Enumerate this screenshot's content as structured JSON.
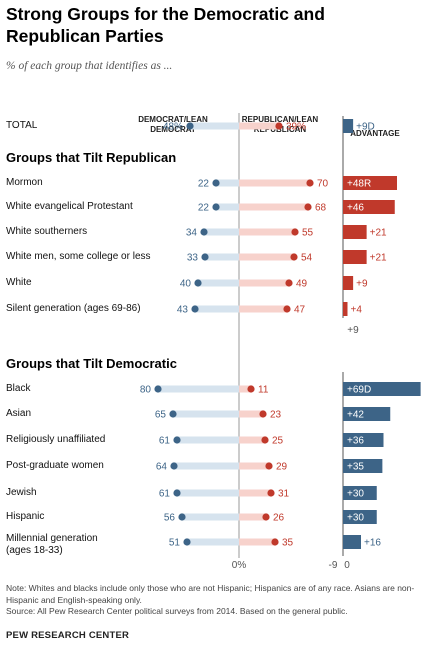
{
  "title": "Strong Groups for the Democratic and Republican Parties",
  "subtitle": "% of each group that identifies as ...",
  "headers": {
    "dem_line1": "DEMOCRAT/LEAN",
    "dem_line2": "DEMOCRAT",
    "rep_line1": "REPUBLICAN/LEAN",
    "rep_line2": "REPUBLICAN",
    "advantage": "ADVANTAGE"
  },
  "sections": {
    "republican": "Groups that Tilt Republican",
    "democratic": "Groups that Tilt Democratic"
  },
  "axis_labels": {
    "zero_label": "0%",
    "neg9_label": "-9",
    "zero_adv_label": "0",
    "plus9_label": "+9"
  },
  "colors": {
    "dem": "#3d6487",
    "rep": "#c0392b",
    "dem_track": "#d6e3ee",
    "rep_track": "#f7d2cc"
  },
  "chart_data": {
    "type": "dot",
    "title": "Strong Groups for the Democratic and Republican Parties",
    "series": [
      {
        "name": "DEMOCRAT/LEAN DEMOCRAT"
      },
      {
        "name": "REPUBLICAN/LEAN REPUBLICAN"
      }
    ],
    "rows": [
      {
        "group": "total",
        "label": "TOTAL",
        "label2": "",
        "dem": 48,
        "rep": 39,
        "dem_text": "48%",
        "rep_text": "39%",
        "adv": 9,
        "adv_party": "D",
        "adv_text": "+9D"
      },
      {
        "group": "republican",
        "label": "Mormon",
        "label2": "",
        "dem": 22,
        "rep": 70,
        "dem_text": "22",
        "rep_text": "70",
        "adv": 48,
        "adv_party": "R",
        "adv_text": "+48R"
      },
      {
        "group": "republican",
        "label": "White evangelical Protestant",
        "label2": "",
        "dem": 22,
        "rep": 68,
        "dem_text": "22",
        "rep_text": "68",
        "adv": 46,
        "adv_party": "R",
        "adv_text": "+46"
      },
      {
        "group": "republican",
        "label": "White southerners",
        "label2": "",
        "dem": 34,
        "rep": 55,
        "dem_text": "34",
        "rep_text": "55",
        "adv": 21,
        "adv_party": "R",
        "adv_text": "+21"
      },
      {
        "group": "republican",
        "label": "White men, some college or less",
        "label2": "",
        "dem": 33,
        "rep": 54,
        "dem_text": "33",
        "rep_text": "54",
        "adv": 21,
        "adv_party": "R",
        "adv_text": "+21"
      },
      {
        "group": "republican",
        "label": "White",
        "label2": "",
        "dem": 40,
        "rep": 49,
        "dem_text": "40",
        "rep_text": "49",
        "adv": 9,
        "adv_party": "R",
        "adv_text": "+9"
      },
      {
        "group": "republican",
        "label": "Silent generation (ages 69-86)",
        "label2": "",
        "dem": 43,
        "rep": 47,
        "dem_text": "43",
        "rep_text": "47",
        "adv": 4,
        "adv_party": "R",
        "adv_text": "+4"
      },
      {
        "group": "democratic",
        "label": "Black",
        "label2": "",
        "dem": 80,
        "rep": 11,
        "dem_text": "80",
        "rep_text": "11",
        "adv": 69,
        "adv_party": "D",
        "adv_text": "+69D"
      },
      {
        "group": "democratic",
        "label": "Asian",
        "label2": "",
        "dem": 65,
        "rep": 23,
        "dem_text": "65",
        "rep_text": "23",
        "adv": 42,
        "adv_party": "D",
        "adv_text": "+42"
      },
      {
        "group": "democratic",
        "label": "Religiously unaffiliated",
        "label2": "",
        "dem": 61,
        "rep": 25,
        "dem_text": "61",
        "rep_text": "25",
        "adv": 36,
        "adv_party": "D",
        "adv_text": "+36"
      },
      {
        "group": "democratic",
        "label": "Post-graduate women",
        "label2": "",
        "dem": 64,
        "rep": 29,
        "dem_text": "64",
        "rep_text": "29",
        "adv": 35,
        "adv_party": "D",
        "adv_text": "+35"
      },
      {
        "group": "democratic",
        "label": "Jewish",
        "label2": "",
        "dem": 61,
        "rep": 31,
        "dem_text": "61",
        "rep_text": "31",
        "adv": 30,
        "adv_party": "D",
        "adv_text": "+30"
      },
      {
        "group": "democratic",
        "label": "Hispanic",
        "label2": "",
        "dem": 56,
        "rep": 26,
        "dem_text": "56",
        "rep_text": "26",
        "adv": 30,
        "adv_party": "D",
        "adv_text": "+30"
      },
      {
        "group": "democratic",
        "label": "Millennial generation",
        "label2": "(ages 18-33)",
        "dem": 51,
        "rep": 35,
        "dem_text": "51",
        "rep_text": "35",
        "adv": 16,
        "adv_party": "D",
        "adv_text": "+16"
      }
    ]
  },
  "notes": "Note: Whites and blacks include only those who are not Hispanic; Hispanics are of any race. Asians are non-Hispanic and English-speaking only.",
  "source": "Source: All Pew Research Center political surveys from 2014. Based on the general public.",
  "credit": "PEW RESEARCH CENTER"
}
